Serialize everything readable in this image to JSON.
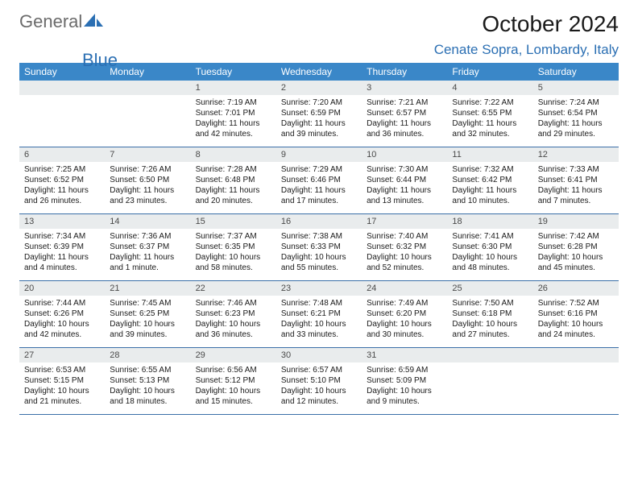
{
  "brand": {
    "word1": "General",
    "word2": "Blue"
  },
  "colors": {
    "accent": "#3a87c8",
    "accent_text": "#2b6fb3",
    "band": "#e9eced",
    "rule": "#3a6fa8",
    "logo_gray": "#6b6b6b"
  },
  "title": {
    "month_year": "October 2024",
    "location": "Cenate Sopra, Lombardy, Italy"
  },
  "days_of_week": [
    "Sunday",
    "Monday",
    "Tuesday",
    "Wednesday",
    "Thursday",
    "Friday",
    "Saturday"
  ],
  "weeks": [
    [
      {
        "n": "",
        "sr": "",
        "ss": "",
        "dl": ""
      },
      {
        "n": "",
        "sr": "",
        "ss": "",
        "dl": ""
      },
      {
        "n": "1",
        "sr": "Sunrise: 7:19 AM",
        "ss": "Sunset: 7:01 PM",
        "dl": "Daylight: 11 hours and 42 minutes."
      },
      {
        "n": "2",
        "sr": "Sunrise: 7:20 AM",
        "ss": "Sunset: 6:59 PM",
        "dl": "Daylight: 11 hours and 39 minutes."
      },
      {
        "n": "3",
        "sr": "Sunrise: 7:21 AM",
        "ss": "Sunset: 6:57 PM",
        "dl": "Daylight: 11 hours and 36 minutes."
      },
      {
        "n": "4",
        "sr": "Sunrise: 7:22 AM",
        "ss": "Sunset: 6:55 PM",
        "dl": "Daylight: 11 hours and 32 minutes."
      },
      {
        "n": "5",
        "sr": "Sunrise: 7:24 AM",
        "ss": "Sunset: 6:54 PM",
        "dl": "Daylight: 11 hours and 29 minutes."
      }
    ],
    [
      {
        "n": "6",
        "sr": "Sunrise: 7:25 AM",
        "ss": "Sunset: 6:52 PM",
        "dl": "Daylight: 11 hours and 26 minutes."
      },
      {
        "n": "7",
        "sr": "Sunrise: 7:26 AM",
        "ss": "Sunset: 6:50 PM",
        "dl": "Daylight: 11 hours and 23 minutes."
      },
      {
        "n": "8",
        "sr": "Sunrise: 7:28 AM",
        "ss": "Sunset: 6:48 PM",
        "dl": "Daylight: 11 hours and 20 minutes."
      },
      {
        "n": "9",
        "sr": "Sunrise: 7:29 AM",
        "ss": "Sunset: 6:46 PM",
        "dl": "Daylight: 11 hours and 17 minutes."
      },
      {
        "n": "10",
        "sr": "Sunrise: 7:30 AM",
        "ss": "Sunset: 6:44 PM",
        "dl": "Daylight: 11 hours and 13 minutes."
      },
      {
        "n": "11",
        "sr": "Sunrise: 7:32 AM",
        "ss": "Sunset: 6:42 PM",
        "dl": "Daylight: 11 hours and 10 minutes."
      },
      {
        "n": "12",
        "sr": "Sunrise: 7:33 AM",
        "ss": "Sunset: 6:41 PM",
        "dl": "Daylight: 11 hours and 7 minutes."
      }
    ],
    [
      {
        "n": "13",
        "sr": "Sunrise: 7:34 AM",
        "ss": "Sunset: 6:39 PM",
        "dl": "Daylight: 11 hours and 4 minutes."
      },
      {
        "n": "14",
        "sr": "Sunrise: 7:36 AM",
        "ss": "Sunset: 6:37 PM",
        "dl": "Daylight: 11 hours and 1 minute."
      },
      {
        "n": "15",
        "sr": "Sunrise: 7:37 AM",
        "ss": "Sunset: 6:35 PM",
        "dl": "Daylight: 10 hours and 58 minutes."
      },
      {
        "n": "16",
        "sr": "Sunrise: 7:38 AM",
        "ss": "Sunset: 6:33 PM",
        "dl": "Daylight: 10 hours and 55 minutes."
      },
      {
        "n": "17",
        "sr": "Sunrise: 7:40 AM",
        "ss": "Sunset: 6:32 PM",
        "dl": "Daylight: 10 hours and 52 minutes."
      },
      {
        "n": "18",
        "sr": "Sunrise: 7:41 AM",
        "ss": "Sunset: 6:30 PM",
        "dl": "Daylight: 10 hours and 48 minutes."
      },
      {
        "n": "19",
        "sr": "Sunrise: 7:42 AM",
        "ss": "Sunset: 6:28 PM",
        "dl": "Daylight: 10 hours and 45 minutes."
      }
    ],
    [
      {
        "n": "20",
        "sr": "Sunrise: 7:44 AM",
        "ss": "Sunset: 6:26 PM",
        "dl": "Daylight: 10 hours and 42 minutes."
      },
      {
        "n": "21",
        "sr": "Sunrise: 7:45 AM",
        "ss": "Sunset: 6:25 PM",
        "dl": "Daylight: 10 hours and 39 minutes."
      },
      {
        "n": "22",
        "sr": "Sunrise: 7:46 AM",
        "ss": "Sunset: 6:23 PM",
        "dl": "Daylight: 10 hours and 36 minutes."
      },
      {
        "n": "23",
        "sr": "Sunrise: 7:48 AM",
        "ss": "Sunset: 6:21 PM",
        "dl": "Daylight: 10 hours and 33 minutes."
      },
      {
        "n": "24",
        "sr": "Sunrise: 7:49 AM",
        "ss": "Sunset: 6:20 PM",
        "dl": "Daylight: 10 hours and 30 minutes."
      },
      {
        "n": "25",
        "sr": "Sunrise: 7:50 AM",
        "ss": "Sunset: 6:18 PM",
        "dl": "Daylight: 10 hours and 27 minutes."
      },
      {
        "n": "26",
        "sr": "Sunrise: 7:52 AM",
        "ss": "Sunset: 6:16 PM",
        "dl": "Daylight: 10 hours and 24 minutes."
      }
    ],
    [
      {
        "n": "27",
        "sr": "Sunrise: 6:53 AM",
        "ss": "Sunset: 5:15 PM",
        "dl": "Daylight: 10 hours and 21 minutes."
      },
      {
        "n": "28",
        "sr": "Sunrise: 6:55 AM",
        "ss": "Sunset: 5:13 PM",
        "dl": "Daylight: 10 hours and 18 minutes."
      },
      {
        "n": "29",
        "sr": "Sunrise: 6:56 AM",
        "ss": "Sunset: 5:12 PM",
        "dl": "Daylight: 10 hours and 15 minutes."
      },
      {
        "n": "30",
        "sr": "Sunrise: 6:57 AM",
        "ss": "Sunset: 5:10 PM",
        "dl": "Daylight: 10 hours and 12 minutes."
      },
      {
        "n": "31",
        "sr": "Sunrise: 6:59 AM",
        "ss": "Sunset: 5:09 PM",
        "dl": "Daylight: 10 hours and 9 minutes."
      },
      {
        "n": "",
        "sr": "",
        "ss": "",
        "dl": ""
      },
      {
        "n": "",
        "sr": "",
        "ss": "",
        "dl": ""
      }
    ]
  ]
}
